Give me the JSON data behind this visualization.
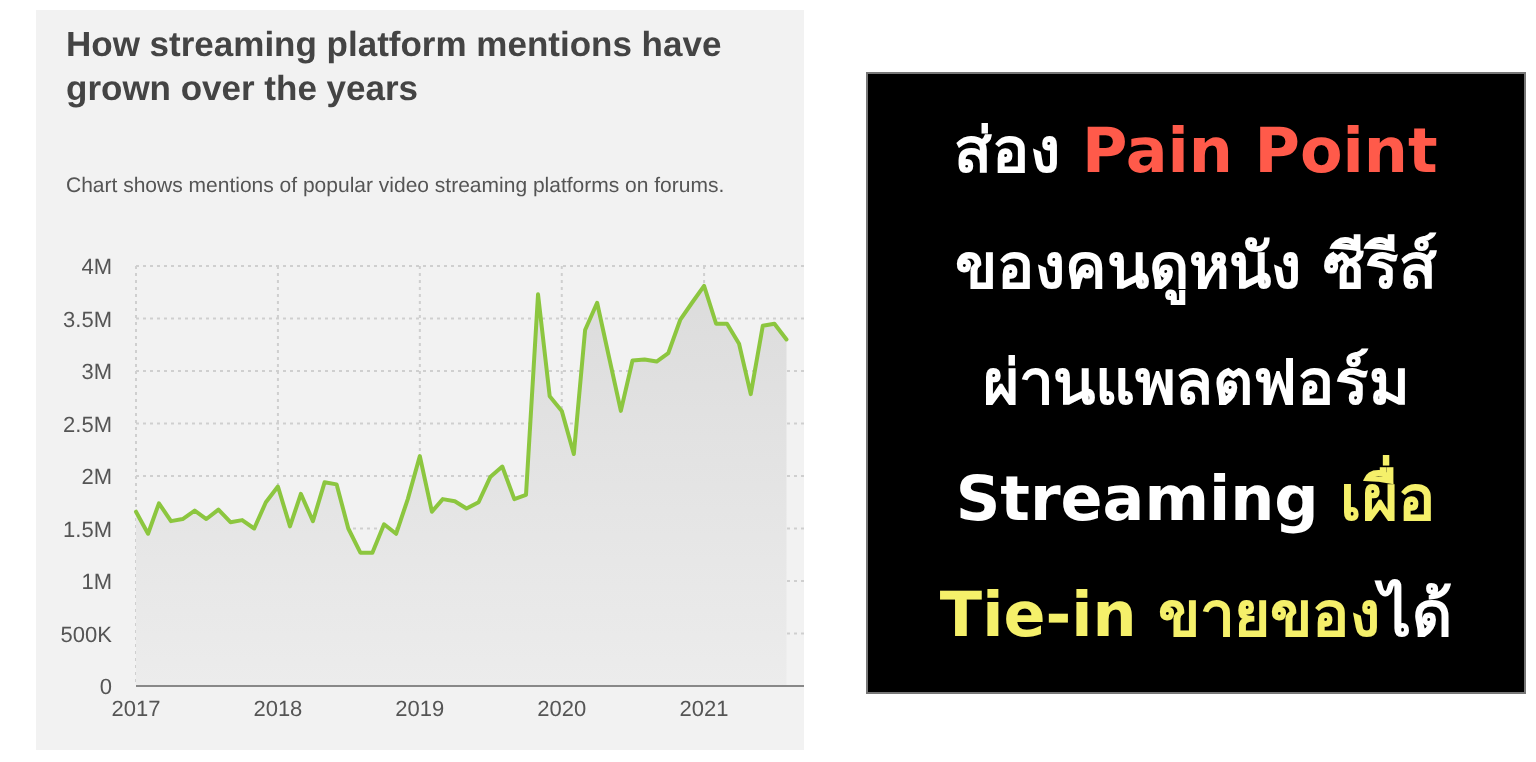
{
  "chart_data": [
    {
      "type": "area",
      "title": "How streaming platform mentions have grown over the years",
      "subtitle": "Chart shows mentions of popular video streaming platforms on forums.",
      "x": [
        "2017-01",
        "2017-02",
        "2017-03",
        "2017-04",
        "2017-05",
        "2017-06",
        "2017-07",
        "2017-08",
        "2017-09",
        "2017-10",
        "2017-11",
        "2017-12",
        "2018-01",
        "2018-02",
        "2018-03",
        "2018-04",
        "2018-05",
        "2018-06",
        "2018-07",
        "2018-08",
        "2018-09",
        "2018-10",
        "2018-11",
        "2018-12",
        "2019-01",
        "2019-02",
        "2019-03",
        "2019-04",
        "2019-05",
        "2019-06",
        "2019-07",
        "2019-08",
        "2019-09",
        "2019-10",
        "2019-11",
        "2019-12",
        "2020-01",
        "2020-02",
        "2020-03",
        "2020-04",
        "2020-05",
        "2020-06",
        "2020-07",
        "2020-08",
        "2020-09",
        "2020-10",
        "2020-11",
        "2020-12",
        "2021-01",
        "2021-02",
        "2021-03",
        "2021-04",
        "2021-05",
        "2021-06",
        "2021-07",
        "2021-08"
      ],
      "series": [
        {
          "color": "#8cc63f",
          "values": [
            1660000,
            1450000,
            1740000,
            1570000,
            1590000,
            1670000,
            1590000,
            1680000,
            1560000,
            1580000,
            1500000,
            1750000,
            1900000,
            1520000,
            1830000,
            1570000,
            1940000,
            1920000,
            1500000,
            1270000,
            1270000,
            1540000,
            1450000,
            1780000,
            2190000,
            1660000,
            1780000,
            1760000,
            1690000,
            1750000,
            1990000,
            2090000,
            1780000,
            1820000,
            3730000,
            2760000,
            2620000,
            2210000,
            3390000,
            3650000,
            3140000,
            2620000,
            3100000,
            3110000,
            3090000,
            3170000,
            3490000,
            3650000,
            3810000,
            3450000,
            3450000,
            3260000,
            2780000,
            3430000,
            3450000,
            3300000
          ]
        }
      ],
      "xlim": [
        "2017-01-01",
        "2021-09-15"
      ],
      "xticks": [
        "2017",
        "2018",
        "2019",
        "2020",
        "2021"
      ],
      "ylim": [
        0,
        4000000
      ],
      "yticks": [
        0,
        {
          "value": 500000,
          "label": "500K"
        },
        {
          "value": 1000000,
          "label": "1M"
        },
        {
          "value": 1500000,
          "label": "1.5M"
        },
        {
          "value": 2000000,
          "label": "2M"
        },
        {
          "value": 2500000,
          "label": "2.5M"
        },
        {
          "value": 3000000,
          "label": "3M"
        },
        {
          "value": 3500000,
          "label": "3.5M"
        },
        {
          "value": 4000000,
          "label": "4M"
        }
      ],
      "grid": true
    },
    {
      "type": "other",
      "annotations": [
        "ส่อง ",
        "Pain Point",
        "ของคนดูหนัง ซีรีส์",
        "ผ่านแพลตฟอร์ม",
        "Streaming ",
        "เผื่อ",
        "Tie-in ",
        "ขายของ",
        "ได้"
      ],
      "colors": [
        "#ffffff",
        "#ff5a4a",
        "#ffffff",
        "#ffffff",
        "#ffffff",
        "#f5f06a",
        "#f5f06a",
        "#f5f06a",
        "#ffffff"
      ]
    }
  ]
}
